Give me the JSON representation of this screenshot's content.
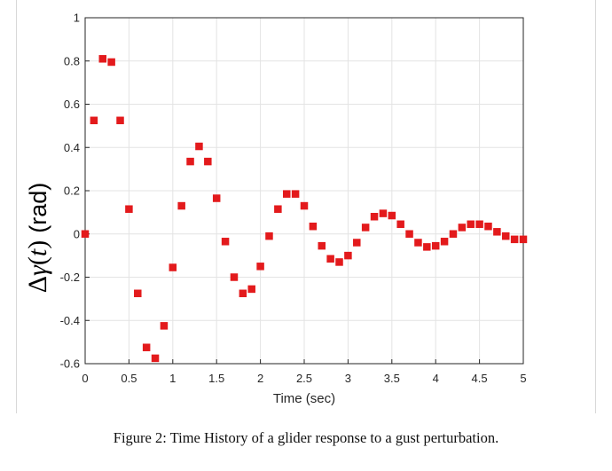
{
  "chart_data": {
    "type": "scatter",
    "title": "",
    "xlabel": "Time (sec)",
    "ylabel": {
      "prefix": "Δ",
      "greek": "γ",
      "paren_open": "(",
      "var": "t",
      "paren_close": ")",
      "unit": "(rad)"
    },
    "xlim": [
      0,
      5
    ],
    "ylim": [
      -0.6,
      1
    ],
    "xticks": [
      "0",
      "0.5",
      "1",
      "1.5",
      "2",
      "2.5",
      "3",
      "3.5",
      "4",
      "4.5",
      "5"
    ],
    "yticks": [
      "-0.6",
      "-0.4",
      "-0.2",
      "0",
      "0.2",
      "0.4",
      "0.6",
      "0.8",
      "1"
    ],
    "grid": true,
    "marker_color": "#e31a1c",
    "series": [
      {
        "points": [
          [
            0.0,
            0.0
          ],
          [
            0.1,
            0.525
          ],
          [
            0.2,
            0.81
          ],
          [
            0.3,
            0.795
          ],
          [
            0.4,
            0.525
          ],
          [
            0.5,
            0.115
          ],
          [
            0.6,
            -0.275
          ],
          [
            0.7,
            -0.525
          ],
          [
            0.8,
            -0.575
          ],
          [
            0.9,
            -0.425
          ],
          [
            1.0,
            -0.155
          ],
          [
            1.1,
            0.13
          ],
          [
            1.2,
            0.335
          ],
          [
            1.3,
            0.405
          ],
          [
            1.4,
            0.335
          ],
          [
            1.5,
            0.165
          ],
          [
            1.6,
            -0.035
          ],
          [
            1.7,
            -0.2
          ],
          [
            1.8,
            -0.275
          ],
          [
            1.9,
            -0.255
          ],
          [
            2.0,
            -0.15
          ],
          [
            2.1,
            -0.01
          ],
          [
            2.2,
            0.115
          ],
          [
            2.3,
            0.185
          ],
          [
            2.4,
            0.185
          ],
          [
            2.5,
            0.13
          ],
          [
            2.6,
            0.035
          ],
          [
            2.7,
            -0.055
          ],
          [
            2.8,
            -0.115
          ],
          [
            2.9,
            -0.13
          ],
          [
            3.0,
            -0.1
          ],
          [
            3.1,
            -0.04
          ],
          [
            3.2,
            0.03
          ],
          [
            3.3,
            0.08
          ],
          [
            3.4,
            0.095
          ],
          [
            3.5,
            0.085
          ],
          [
            3.6,
            0.045
          ],
          [
            3.7,
            0.0
          ],
          [
            3.8,
            -0.04
          ],
          [
            3.9,
            -0.06
          ],
          [
            4.0,
            -0.055
          ],
          [
            4.1,
            -0.035
          ],
          [
            4.2,
            0.0
          ],
          [
            4.3,
            0.03
          ],
          [
            4.4,
            0.045
          ],
          [
            4.5,
            0.045
          ],
          [
            4.6,
            0.035
          ],
          [
            4.7,
            0.01
          ],
          [
            4.8,
            -0.01
          ],
          [
            4.9,
            -0.025
          ],
          [
            5.0,
            -0.025
          ]
        ]
      }
    ]
  },
  "caption": "Figure 2: Time History of a glider response to a gust perturbation."
}
